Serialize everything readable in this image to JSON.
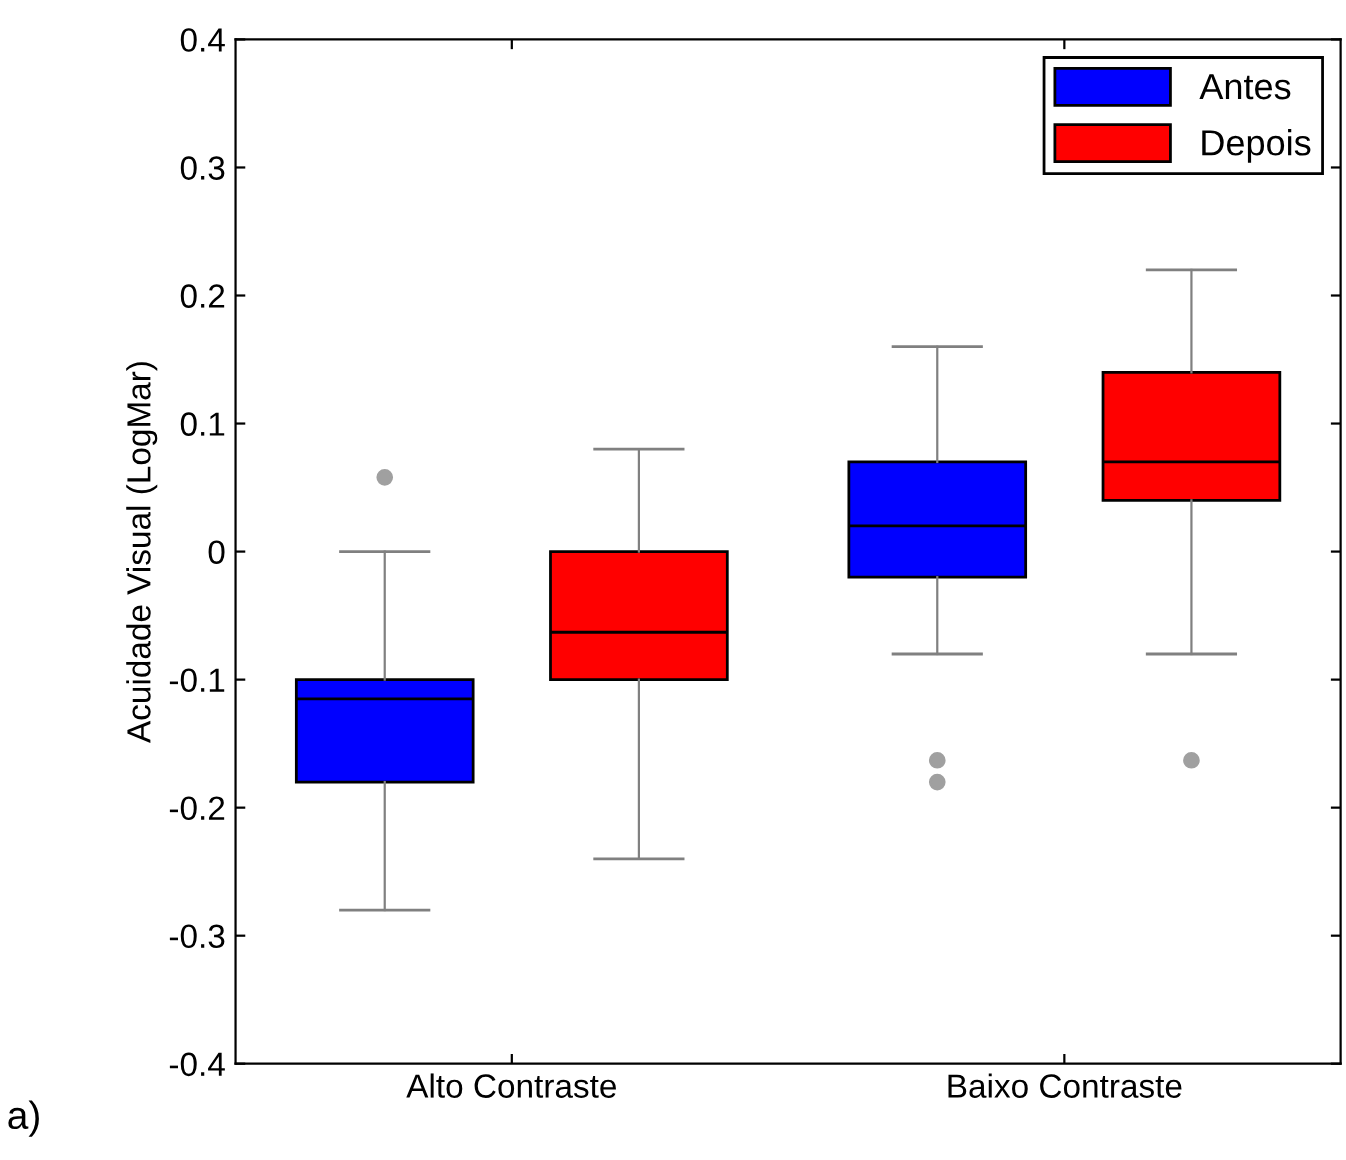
{
  "chart_data": {
    "type": "box",
    "ylabel": "Acuidade Visual (LogMar)",
    "categories": [
      "Alto Contraste",
      "Baixo Contraste"
    ],
    "series": [
      {
        "name": "Antes",
        "color": "#0000ff",
        "boxes": [
          {
            "low": -0.28,
            "q1": -0.18,
            "median": -0.115,
            "q3": -0.1,
            "high": 0,
            "outliers": [
              0.058
            ]
          },
          {
            "low": -0.08,
            "q1": -0.02,
            "median": 0.02,
            "q3": 0.07,
            "high": 0.16,
            "outliers": [
              -0.163,
              -0.18
            ]
          }
        ]
      },
      {
        "name": "Depois",
        "color": "#ff0000",
        "boxes": [
          {
            "low": -0.24,
            "q1": -0.1,
            "median": -0.063,
            "q3": 0,
            "high": 0.08
          },
          {
            "low": -0.08,
            "q1": 0.04,
            "median": 0.07,
            "q3": 0.14,
            "high": 0.22,
            "outliers": [
              -0.163
            ]
          }
        ]
      }
    ],
    "ylim": [
      -0.4,
      0.4
    ],
    "yticks": [
      -0.4,
      -0.3,
      -0.2,
      -0.1,
      0,
      0.1,
      0.2,
      0.3,
      0.4
    ],
    "legend": "top right",
    "grid": false,
    "annotations": [
      "a)"
    ]
  }
}
